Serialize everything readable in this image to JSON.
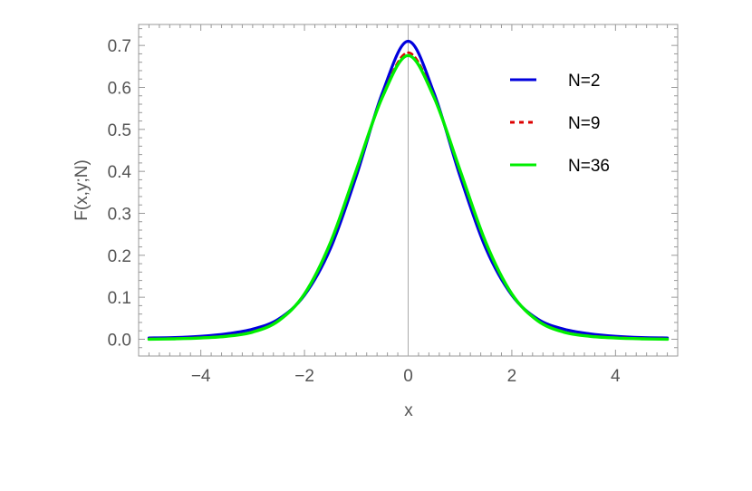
{
  "chart_data": {
    "type": "line",
    "title": "",
    "xlabel": "x",
    "ylabel": "F(x,y;N)",
    "xlim": [
      -5.2,
      5.2
    ],
    "ylim": [
      -0.04,
      0.75
    ],
    "x_ticks": [
      -4,
      -2,
      0,
      2,
      4
    ],
    "x_tick_labels": [
      "−4",
      "−2",
      "0",
      "2",
      "4"
    ],
    "y_ticks": [
      0.0,
      0.1,
      0.2,
      0.3,
      0.4,
      0.5,
      0.6,
      0.7
    ],
    "y_tick_labels": [
      "0.0",
      "0.1",
      "0.2",
      "0.3",
      "0.4",
      "0.5",
      "0.6",
      "0.7"
    ],
    "grid": false,
    "legend_position": "top-right",
    "series": [
      {
        "name": "N=2",
        "color": "#0000dd",
        "dash": "solid",
        "x": [
          -5,
          -4.5,
          -4,
          -3.5,
          -3,
          -2.5,
          -2,
          -1.5,
          -1,
          -0.5,
          0,
          0.5,
          1,
          1.5,
          2,
          2.5,
          3,
          3.5,
          4,
          4.5,
          5
        ],
        "y": [
          0.003,
          0.004,
          0.007,
          0.013,
          0.024,
          0.048,
          0.105,
          0.216,
          0.389,
          0.586,
          0.71,
          0.586,
          0.389,
          0.216,
          0.105,
          0.048,
          0.024,
          0.013,
          0.007,
          0.004,
          0.003
        ]
      },
      {
        "name": "N=9",
        "color": "#dd0000",
        "dash": "dashed",
        "x": [
          -5,
          -4.5,
          -4,
          -3.5,
          -3,
          -2.5,
          -2,
          -1.5,
          -1,
          -0.5,
          0,
          0.5,
          1,
          1.5,
          2,
          2.5,
          3,
          3.5,
          4,
          4.5,
          5
        ],
        "y": [
          0.001,
          0.002,
          0.004,
          0.008,
          0.018,
          0.045,
          0.108,
          0.228,
          0.4,
          0.578,
          0.683,
          0.578,
          0.4,
          0.228,
          0.108,
          0.045,
          0.018,
          0.008,
          0.004,
          0.002,
          0.001
        ]
      },
      {
        "name": "N=36",
        "color": "#00ee00",
        "dash": "solid",
        "x": [
          -5,
          -4.5,
          -4,
          -3.5,
          -3,
          -2.5,
          -2,
          -1.5,
          -1,
          -0.5,
          0,
          0.5,
          1,
          1.5,
          2,
          2.5,
          3,
          3.5,
          4,
          4.5,
          5
        ],
        "y": [
          0.0,
          0.001,
          0.003,
          0.007,
          0.017,
          0.044,
          0.108,
          0.23,
          0.403,
          0.576,
          0.676,
          0.576,
          0.403,
          0.23,
          0.108,
          0.044,
          0.017,
          0.007,
          0.003,
          0.001,
          0.0
        ]
      }
    ]
  }
}
